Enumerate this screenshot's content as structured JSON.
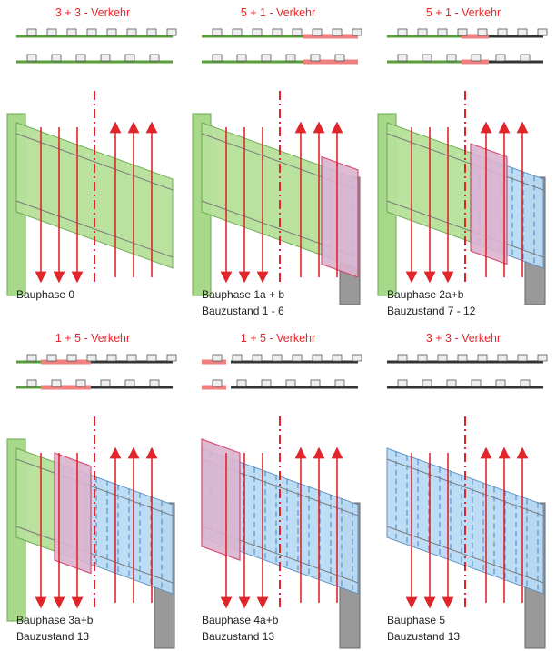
{
  "panels": [
    {
      "traffic": "3 + 3 - Verkehr",
      "labels": [
        "Bauphase 0"
      ]
    },
    {
      "traffic": "5 + 1 - Verkehr",
      "labels": [
        "Bauphase 1a + b",
        "Bauzustand 1 - 6"
      ]
    },
    {
      "traffic": "5 + 1 - Verkehr",
      "labels": [
        "Bauphase 2a+b",
        "Bauzustand 7 - 12"
      ]
    },
    {
      "traffic": "1 + 5 - Verkehr",
      "labels": [
        "Bauphase 3a+b",
        "Bauzustand 13"
      ]
    },
    {
      "traffic": "1 + 5 - Verkehr",
      "labels": [
        "Bauphase 4a+b",
        "Bauzustand 13"
      ]
    },
    {
      "traffic": "3 + 3 - Verkehr",
      "labels": [
        "Bauphase 5",
        "Bauzustand 13"
      ]
    }
  ]
}
